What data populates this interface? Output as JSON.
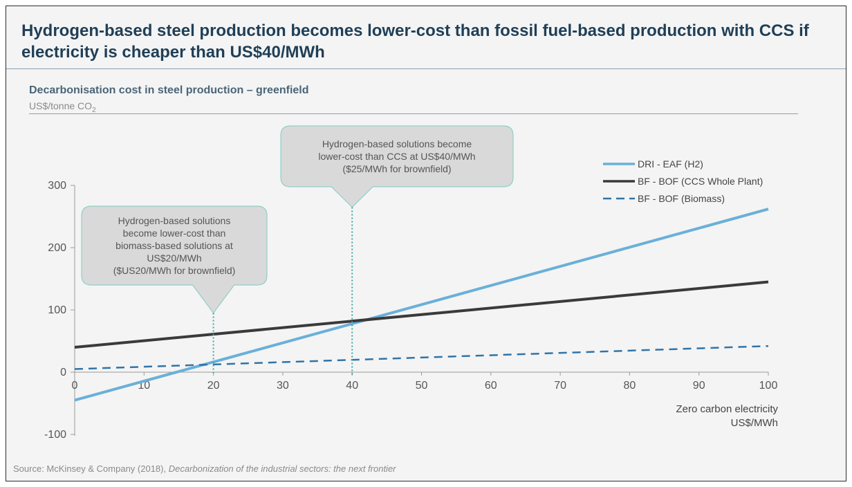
{
  "header": {
    "title": "Hydrogen-based steel production becomes lower-cost than fossil fuel-based production with CCS if electricity is cheaper than US$40/MWh"
  },
  "chart_header": {
    "subtitle": "Decarbonisation cost in steel production – greenfield",
    "unit_main": "US$/tonne CO",
    "unit_sub": "2"
  },
  "source": {
    "prefix": "Source: McKinsey & Company (2018), ",
    "title": "Decarbonization of the industrial sectors: the next frontier"
  },
  "colors": {
    "dri": "#6ab0d8",
    "ccs": "#3a3a3a",
    "biomass": "#2f74a8",
    "callout_fill": "#d9d9d9",
    "callout_border": "#8fd0c6",
    "marker_line": "#3aa6a0"
  },
  "chart_data": {
    "type": "line",
    "title": "Decarbonisation cost in steel production – greenfield",
    "ylabel": "US$/tonne CO2",
    "xlabel_lines": [
      "Zero carbon electricity",
      "US$/MWh"
    ],
    "xlim": [
      0,
      100
    ],
    "ylim": [
      -100,
      300
    ],
    "x_ticks": [
      0,
      10,
      20,
      30,
      40,
      50,
      60,
      70,
      80,
      90,
      100
    ],
    "y_ticks": [
      -100,
      0,
      100,
      200,
      300
    ],
    "grid": false,
    "legend_position": "top-right",
    "series": [
      {
        "name": "DRI - EAF (H2)",
        "style": "solid",
        "color": "#6ab0d8",
        "x": [
          0,
          100
        ],
        "y": [
          -45,
          262
        ]
      },
      {
        "name": "BF - BOF (CCS Whole Plant)",
        "style": "solid",
        "color": "#3a3a3a",
        "x": [
          0,
          100
        ],
        "y": [
          40,
          145
        ]
      },
      {
        "name": "BF - BOF (Biomass)",
        "style": "dashed",
        "color": "#2f74a8",
        "x": [
          0,
          100
        ],
        "y": [
          5,
          42
        ]
      }
    ],
    "annotations": [
      {
        "lines": [
          "Hydrogen-based solutions",
          "become lower-cost than",
          "biomass-based solutions at",
          "US$20/MWh",
          "($US20/MWh for brownfield)"
        ],
        "x": 20,
        "y_from": 95,
        "y_to": -5
      },
      {
        "lines": [
          "Hydrogen-based solutions become",
          "lower-cost than CCS at US$40/MWh",
          "($25/MWh for brownfield)"
        ],
        "x": 40,
        "y_from": 265,
        "y_to": -5
      }
    ]
  }
}
